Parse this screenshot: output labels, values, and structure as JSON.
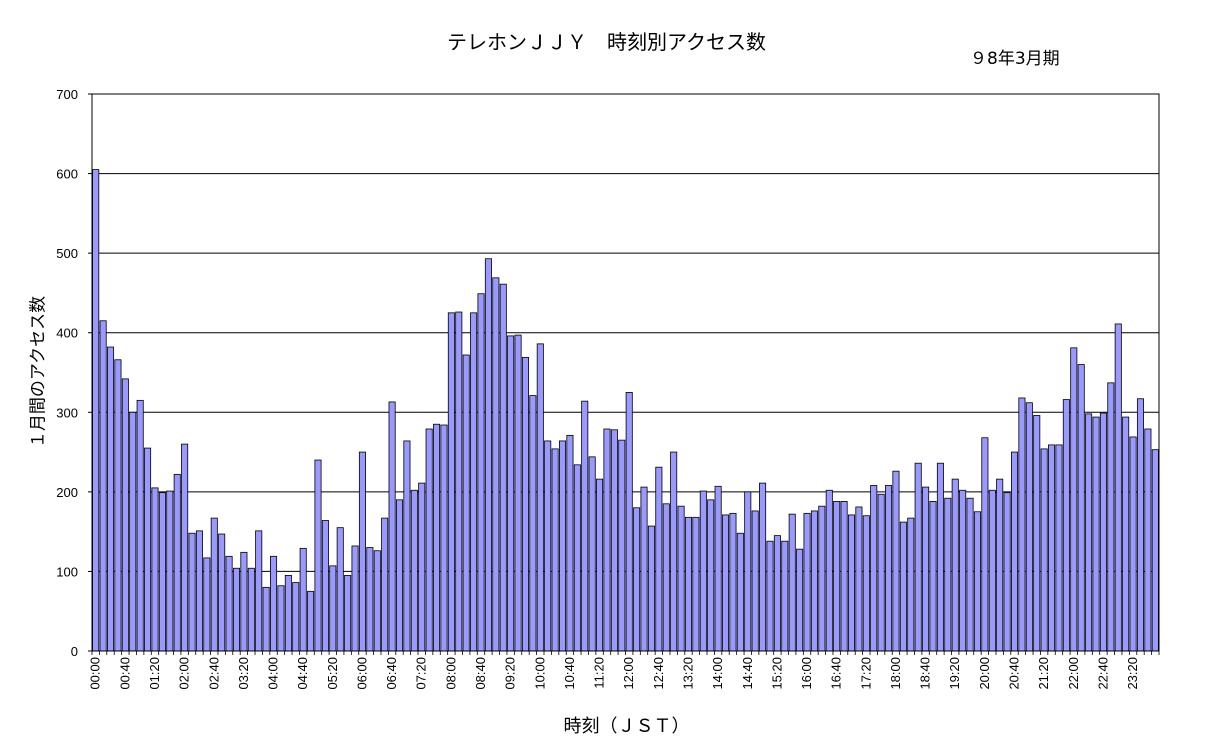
{
  "chart_data": {
    "type": "bar",
    "title": "テレホンＪＪＹ　時刻別アクセス数",
    "subtitle": "９8年3月期",
    "xlabel": "時刻（ＪＳＴ）",
    "ylabel": "１月間のアクセス数",
    "ylim": [
      0,
      700
    ],
    "yticks": [
      0,
      100,
      200,
      300,
      400,
      500,
      600,
      700
    ],
    "grid": "horizontal",
    "legend": "none",
    "bar_color": "#9999ff",
    "bar_edge_color": "#000000",
    "tick_labels": [
      "00:00",
      "00:40",
      "01:20",
      "02:00",
      "02:40",
      "03:20",
      "04:00",
      "04:40",
      "05:20",
      "06:00",
      "06:40",
      "07:20",
      "08:00",
      "08:40",
      "09:20",
      "10:00",
      "10:40",
      "11:20",
      "12:00",
      "12:40",
      "13:20",
      "14:00",
      "14:40",
      "15:20",
      "16:00",
      "16:40",
      "17:20",
      "18:00",
      "18:40",
      "19:20",
      "20:00",
      "20:40",
      "21:20",
      "22:00",
      "22:40",
      "23:20"
    ],
    "values": [
      605,
      415,
      382,
      366,
      342,
      300,
      315,
      255,
      205,
      199,
      201,
      222,
      260,
      148,
      151,
      117,
      167,
      147,
      119,
      104,
      124,
      104,
      151,
      80,
      119,
      82,
      95,
      86,
      129,
      75,
      240,
      164,
      107,
      155,
      95,
      132,
      250,
      130,
      126,
      167,
      313,
      190,
      264,
      202,
      211,
      279,
      285,
      284,
      425,
      426,
      372,
      425,
      449,
      493,
      469,
      461,
      396,
      397,
      369,
      321,
      386,
      264,
      254,
      264,
      271,
      234,
      314,
      244,
      216,
      279,
      278,
      265,
      325,
      180,
      206,
      157,
      231,
      185,
      250,
      182,
      168,
      168,
      201,
      190,
      207,
      171,
      173,
      148,
      200,
      176,
      211,
      138,
      145,
      138,
      172,
      128,
      173,
      176,
      182,
      202,
      188,
      188,
      171,
      181,
      170,
      208,
      197,
      208,
      226,
      162,
      167,
      236,
      206,
      188,
      236,
      192,
      216,
      202,
      192,
      175,
      268,
      202,
      216,
      199,
      250,
      318,
      312,
      296,
      254,
      259,
      259,
      316,
      381,
      360,
      298,
      294,
      299,
      337,
      411,
      294,
      269,
      317,
      279,
      253
    ]
  }
}
